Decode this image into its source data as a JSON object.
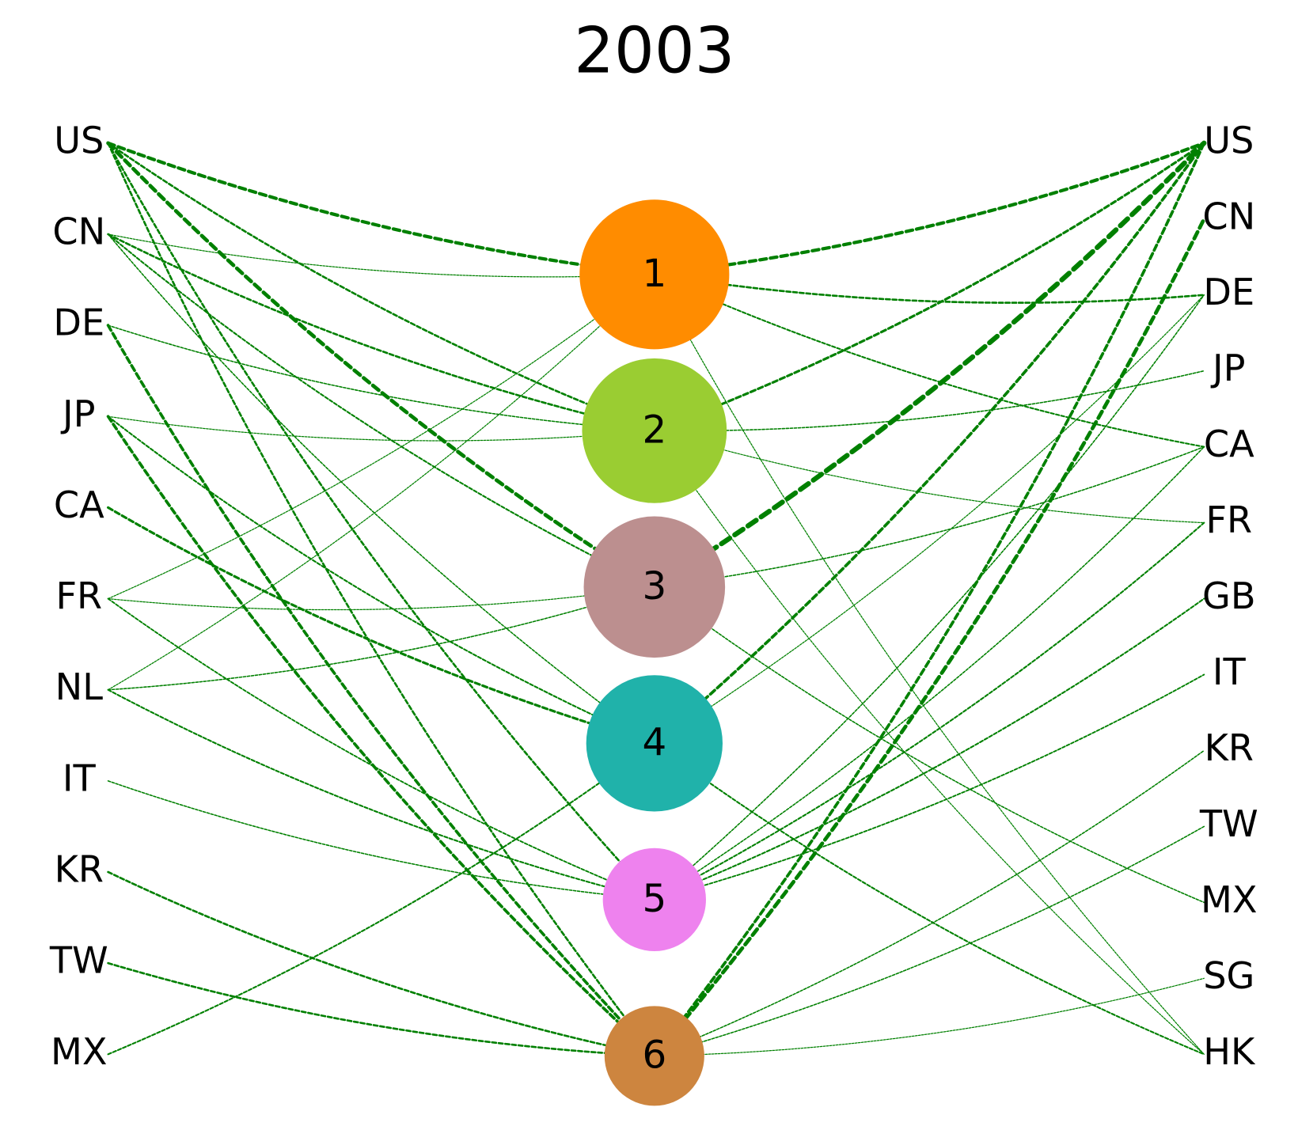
{
  "title": "2003",
  "edge_color": "#008000",
  "left_nodes": [
    "US",
    "CN",
    "DE",
    "JP",
    "CA",
    "FR",
    "NL",
    "IT",
    "KR",
    "TW",
    "MX"
  ],
  "right_nodes": [
    "US",
    "CN",
    "DE",
    "JP",
    "CA",
    "FR",
    "GB",
    "IT",
    "KR",
    "TW",
    "MX",
    "SG",
    "HK"
  ],
  "center_nodes": [
    {
      "label": "1",
      "color": "#ff8c00",
      "size": 90
    },
    {
      "label": "2",
      "color": "#9acd32",
      "size": 87
    },
    {
      "label": "3",
      "color": "#bc8f8f",
      "size": 85
    },
    {
      "label": "4",
      "color": "#20b2aa",
      "size": 82
    },
    {
      "label": "5",
      "color": "#ee82ee",
      "size": 62
    },
    {
      "label": "6",
      "color": "#cd853f",
      "size": 60
    }
  ],
  "left_edges": [
    {
      "from": "US",
      "to": "1",
      "weight": 4
    },
    {
      "from": "US",
      "to": "2",
      "weight": 2.5
    },
    {
      "from": "US",
      "to": "3",
      "weight": 4.5
    },
    {
      "from": "US",
      "to": "5",
      "weight": 2.5
    },
    {
      "from": "US",
      "to": "6",
      "weight": 2.5
    },
    {
      "from": "CN",
      "to": "1",
      "weight": 1.2
    },
    {
      "from": "CN",
      "to": "2",
      "weight": 2.5
    },
    {
      "from": "CN",
      "to": "3",
      "weight": 2
    },
    {
      "from": "CN",
      "to": "4",
      "weight": 1.5
    },
    {
      "from": "DE",
      "to": "2",
      "weight": 1.5
    },
    {
      "from": "DE",
      "to": "6",
      "weight": 3.5
    },
    {
      "from": "JP",
      "to": "2",
      "weight": 1.2
    },
    {
      "from": "JP",
      "to": "4",
      "weight": 2
    },
    {
      "from": "JP",
      "to": "6",
      "weight": 3.5
    },
    {
      "from": "CA",
      "to": "4",
      "weight": 3
    },
    {
      "from": "FR",
      "to": "1",
      "weight": 1.2
    },
    {
      "from": "FR",
      "to": "3",
      "weight": 1.2
    },
    {
      "from": "FR",
      "to": "5",
      "weight": 1.8
    },
    {
      "from": "NL",
      "to": "1",
      "weight": 1.2
    },
    {
      "from": "NL",
      "to": "3",
      "weight": 1.5
    },
    {
      "from": "NL",
      "to": "5",
      "weight": 2
    },
    {
      "from": "IT",
      "to": "5",
      "weight": 1.5
    },
    {
      "from": "KR",
      "to": "6",
      "weight": 2.5
    },
    {
      "from": "TW",
      "to": "6",
      "weight": 2.5
    },
    {
      "from": "MX",
      "to": "4",
      "weight": 2
    }
  ],
  "right_edges": [
    {
      "from": "1",
      "to": "US",
      "weight": 4
    },
    {
      "from": "1",
      "to": "DE",
      "weight": 2.5
    },
    {
      "from": "1",
      "to": "CA",
      "weight": 2
    },
    {
      "from": "1",
      "to": "HK",
      "weight": 1.2
    },
    {
      "from": "2",
      "to": "US",
      "weight": 3
    },
    {
      "from": "2",
      "to": "JP",
      "weight": 1.5
    },
    {
      "from": "2",
      "to": "FR",
      "weight": 1.2
    },
    {
      "from": "2",
      "to": "HK",
      "weight": 1.2
    },
    {
      "from": "3",
      "to": "US",
      "weight": 6
    },
    {
      "from": "3",
      "to": "CA",
      "weight": 1.5
    },
    {
      "from": "3",
      "to": "MX",
      "weight": 1.5
    },
    {
      "from": "4",
      "to": "US",
      "weight": 3.5
    },
    {
      "from": "4",
      "to": "DE",
      "weight": 1.2
    },
    {
      "from": "4",
      "to": "HK",
      "weight": 2
    },
    {
      "from": "5",
      "to": "DE",
      "weight": 1.5
    },
    {
      "from": "5",
      "to": "CA",
      "weight": 1.5
    },
    {
      "from": "5",
      "to": "FR",
      "weight": 2
    },
    {
      "from": "5",
      "to": "GB",
      "weight": 2
    },
    {
      "from": "5",
      "to": "IT",
      "weight": 1.8
    },
    {
      "from": "6",
      "to": "US",
      "weight": 3.5
    },
    {
      "from": "6",
      "to": "CN",
      "weight": 4.5
    },
    {
      "from": "6",
      "to": "KR",
      "weight": 1.5
    },
    {
      "from": "6",
      "to": "TW",
      "weight": 1.5
    },
    {
      "from": "6",
      "to": "SG",
      "weight": 1.2
    }
  ]
}
